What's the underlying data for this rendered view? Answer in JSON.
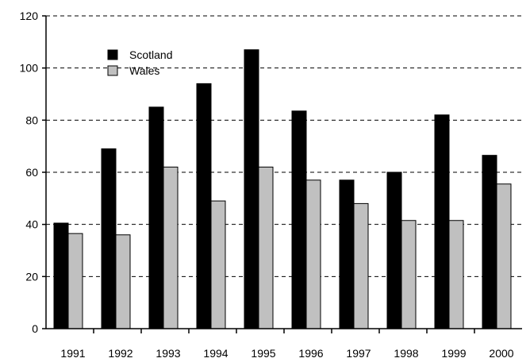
{
  "chart_data": {
    "type": "bar",
    "categories": [
      "1991",
      "1992",
      "1993",
      "1994",
      "1995",
      "1996",
      "1997",
      "1998",
      "1999",
      "2000"
    ],
    "series": [
      {
        "name": "Scotland",
        "color": "#000000",
        "values": [
          40.5,
          69,
          85,
          94,
          107,
          83.5,
          57,
          60,
          82,
          66.5
        ]
      },
      {
        "name": "Wales",
        "color": "#c0c0c0",
        "values": [
          36.5,
          36,
          62,
          49,
          62,
          57,
          48,
          41.5,
          41.5,
          55.5
        ]
      }
    ],
    "title": "",
    "xlabel": "",
    "ylabel": "",
    "ylim": [
      0,
      120
    ],
    "yticks": [
      "0",
      "20",
      "40",
      "60",
      "80",
      "100",
      "120"
    ],
    "grid": true,
    "legend_position": "top-left"
  }
}
